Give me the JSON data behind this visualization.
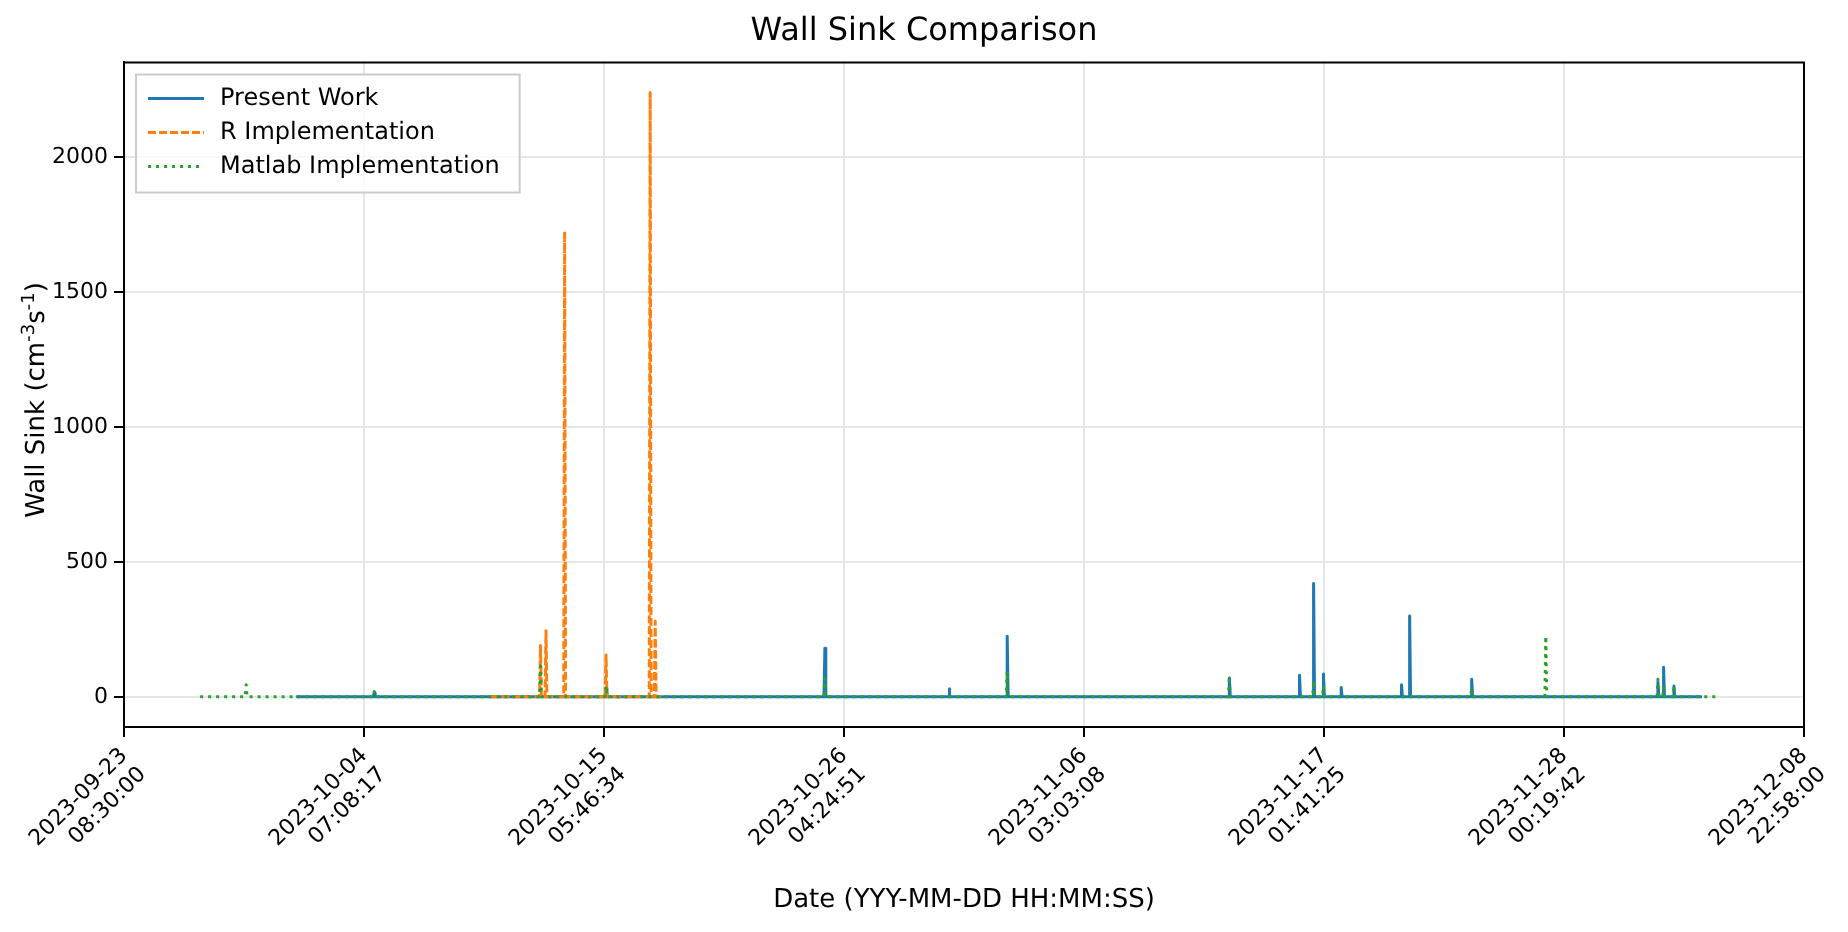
{
  "chart_data": {
    "type": "line",
    "title": "Wall Sink Comparison",
    "xlabel": "Date (YYY-MM-DD HH:MM:SS)",
    "ylabel": "Wall Sink (cm$^{-3}$s$^{-1}$)",
    "xlim": [
      "2023-09-23T08:30:00",
      "2023-12-08T22:58:00"
    ],
    "xticks": [
      {
        "value": "2023-09-23T08:30:00",
        "label": "2023-09-23 08:30:00"
      },
      {
        "value": "2023-10-04T07:08:17",
        "label": "2023-10-04 07:08:17"
      },
      {
        "value": "2023-10-15T05:46:34",
        "label": "2023-10-15 05:46:34"
      },
      {
        "value": "2023-10-26T04:24:51",
        "label": "2023-10-26 04:24:51"
      },
      {
        "value": "2023-11-06T03:03:08",
        "label": "2023-11-06 03:03:08"
      },
      {
        "value": "2023-11-17T01:41:25",
        "label": "2023-11-17 01:41:25"
      },
      {
        "value": "2023-11-28T00:19:42",
        "label": "2023-11-28 00:19:42"
      },
      {
        "value": "2023-12-08T22:58:00",
        "label": "2023-12-08 22:58:00"
      }
    ],
    "ylim": [
      -112,
      2352
    ],
    "yticks": [
      0,
      500,
      1000,
      1500,
      2000
    ],
    "grid": true,
    "legend": "top left",
    "series": [
      {
        "name": "Present Work",
        "color": "#1f77b4",
        "line_style": "solid",
        "x": [
          "2023-10-01T04:54",
          "2023-10-04T17:20",
          "2023-10-04T18:20",
          "2023-10-04T19:20",
          "2023-10-15T07:00",
          "2023-10-15T08:00",
          "2023-10-15T09:00",
          "2023-10-25T06:30",
          "2023-10-25T07:30",
          "2023-10-25T08:30",
          "2023-10-30T22:24",
          "2023-10-30T23:24",
          "2023-10-31T00:24",
          "2023-11-02T14:00",
          "2023-11-02T15:00",
          "2023-11-02T16:00",
          "2023-11-12T17:06",
          "2023-11-12T18:06",
          "2023-11-12T19:06",
          "2023-11-15T21:54",
          "2023-11-15T22:54",
          "2023-11-15T23:54",
          "2023-11-16T13:18",
          "2023-11-16T14:18",
          "2023-11-16T15:18",
          "2023-11-17T00:06",
          "2023-11-17T01:06",
          "2023-11-17T02:06",
          "2023-11-17T19:30",
          "2023-11-17T20:30",
          "2023-11-17T21:30",
          "2023-11-20T13:30",
          "2023-11-20T14:30",
          "2023-11-20T15:30",
          "2023-11-20T22:24",
          "2023-11-20T23:24",
          "2023-11-21T00:24",
          "2023-11-23T18:18",
          "2023-11-23T19:18",
          "2023-11-23T20:18",
          "2023-12-02T06:06",
          "2023-12-02T07:06",
          "2023-12-02T08:06",
          "2023-12-02T12:18",
          "2023-12-02T13:18",
          "2023-12-02T14:18",
          "2023-12-02T23:36",
          "2023-12-03T00:36",
          "2023-12-03T01:36",
          "2023-12-04T07:18"
        ],
        "values": [
          0,
          0,
          15,
          0,
          0,
          30,
          0,
          0,
          180,
          0,
          0,
          30,
          0,
          0,
          225,
          0,
          0,
          70,
          0,
          0,
          80,
          0,
          0,
          420,
          0,
          0,
          85,
          0,
          0,
          35,
          0,
          0,
          45,
          0,
          0,
          300,
          0,
          0,
          65,
          0,
          0,
          55,
          0,
          0,
          110,
          0,
          0,
          40,
          0,
          0
        ]
      },
      {
        "name": "R Implementation",
        "color": "#ff7f0e",
        "line_style": "dashed",
        "x": [
          "2023-10-10T01:30",
          "2023-10-12T07:18",
          "2023-10-12T08:18",
          "2023-10-12T09:18",
          "2023-10-12T13:18",
          "2023-10-12T14:18",
          "2023-10-12T15:18",
          "2023-10-13T09:42",
          "2023-10-13T10:42",
          "2023-10-13T11:42",
          "2023-10-15T07:00",
          "2023-10-15T08:00",
          "2023-10-15T09:00",
          "2023-10-17T07:18",
          "2023-10-17T08:18",
          "2023-10-17T09:18",
          "2023-10-17T12:48",
          "2023-10-17T13:48",
          "2023-10-17T14:48",
          "2023-10-17T19:48"
        ],
        "values": [
          0,
          0,
          190,
          0,
          0,
          245,
          0,
          0,
          1725,
          0,
          0,
          155,
          0,
          0,
          2240,
          0,
          0,
          280,
          0,
          0
        ]
      },
      {
        "name": "Matlab Implementation",
        "color": "#2ca02c",
        "line_style": "dotted",
        "x": [
          "2023-09-26T19:48",
          "2023-09-28T21:12",
          "2023-09-28T22:12",
          "2023-09-28T23:12",
          "2023-10-04T17:20",
          "2023-10-04T18:20",
          "2023-10-04T19:20",
          "2023-10-12T07:18",
          "2023-10-12T08:18",
          "2023-10-12T09:18",
          "2023-10-15T07:00",
          "2023-10-15T08:00",
          "2023-10-15T09:00",
          "2023-10-25T06:30",
          "2023-10-25T07:30",
          "2023-10-25T08:30",
          "2023-11-02T14:00",
          "2023-11-02T15:00",
          "2023-11-02T16:00",
          "2023-11-12T17:06",
          "2023-11-12T18:06",
          "2023-11-12T19:06",
          "2023-11-16T13:18",
          "2023-11-16T14:18",
          "2023-11-16T15:18",
          "2023-11-17T00:06",
          "2023-11-17T01:06",
          "2023-11-17T02:06",
          "2023-11-23T18:18",
          "2023-11-23T19:18",
          "2023-11-23T20:18",
          "2023-11-27T03:24",
          "2023-11-27T04:24",
          "2023-11-27T05:24",
          "2023-12-02T06:06",
          "2023-12-02T07:06",
          "2023-12-02T08:06",
          "2023-12-02T12:18",
          "2023-12-02T13:18",
          "2023-12-02T14:18",
          "2023-12-02T23:36",
          "2023-12-03T00:36",
          "2023-12-03T01:36",
          "2023-12-05T00:48"
        ],
        "values": [
          0,
          0,
          45,
          0,
          0,
          20,
          0,
          0,
          115,
          0,
          0,
          40,
          0,
          0,
          70,
          0,
          0,
          95,
          0,
          0,
          75,
          0,
          0,
          60,
          0,
          0,
          40,
          0,
          0,
          35,
          0,
          0,
          225,
          0,
          0,
          65,
          0,
          0,
          35,
          0,
          0,
          30,
          0,
          0
        ]
      }
    ]
  }
}
